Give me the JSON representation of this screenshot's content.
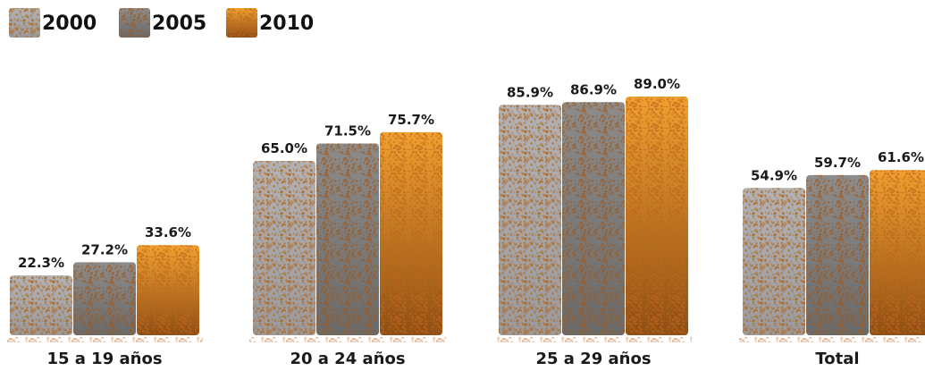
{
  "chart_data": {
    "type": "bar",
    "categories": [
      "15 a 19 años",
      "20 a 24 años",
      "25 a 29 años",
      "Total"
    ],
    "series": [
      {
        "name": "2000",
        "values": [
          22.3,
          65.0,
          85.9,
          54.9
        ],
        "labels": [
          "22.3%",
          "65.0%",
          "85.9%",
          "54.9%"
        ]
      },
      {
        "name": "2005",
        "values": [
          27.2,
          71.5,
          86.9,
          59.7
        ],
        "labels": [
          "27.2%",
          "71.5%",
          "86.9%",
          "59.7%"
        ]
      },
      {
        "name": "2010",
        "values": [
          33.6,
          75.7,
          89.0,
          61.6
        ],
        "labels": [
          "33.6%",
          "75.7%",
          "89.0%",
          "61.6%"
        ]
      }
    ],
    "ylim": [
      0,
      100
    ],
    "legend_position": "top-left",
    "grid": false,
    "colors": {
      "2000": {
        "top": "#b2b2b2",
        "bottom": "#9a9a9a",
        "speckle": "#b5651d"
      },
      "2005": {
        "top": "#8c8c8c",
        "bottom": "#6a6a6a",
        "speckle": "#a0581a"
      },
      "2010": {
        "top": "#f0a030",
        "bottom": "#8f4e14",
        "speckle": "#c0651a"
      }
    }
  }
}
